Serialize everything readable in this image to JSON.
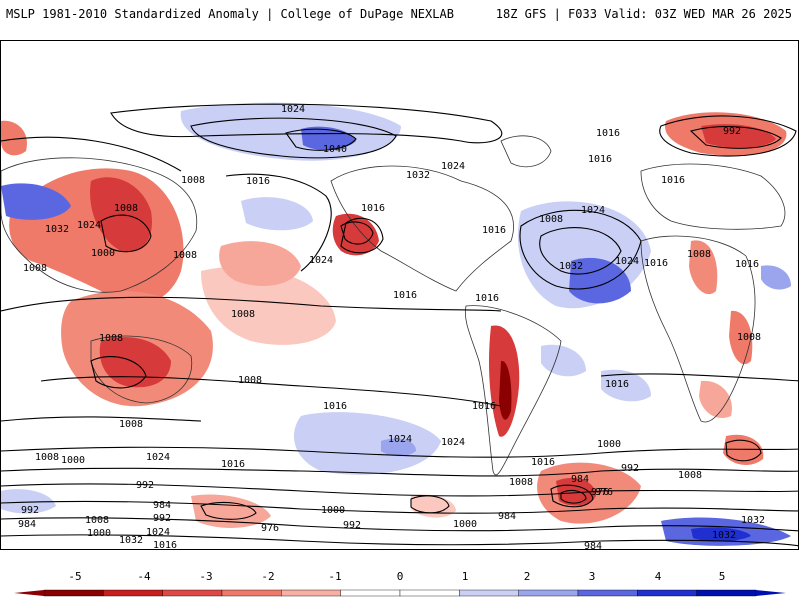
{
  "header": {
    "left_title": "MSLP 1981-2010 Standardized Anomaly | College of DuPage NEXLAB",
    "right_title": "18Z GFS | F033 Valid: 03Z WED MAR 26 2025"
  },
  "colors": {
    "neg_strong": "#8b0000",
    "neg_mid": "#d63a3a",
    "neg_light": "#f28a7a",
    "neg_faint": "#fbc8bf",
    "pos_faint": "#c9cff5",
    "pos_light": "#9aa5ee",
    "pos_mid": "#5a67e0",
    "pos_strong": "#2030d0",
    "contour": "#000000",
    "border": "#000000"
  },
  "colorbar": {
    "ticks": [
      "-5",
      "-4",
      "-3",
      "-2",
      "-1",
      "0",
      "1",
      "2",
      "3",
      "4",
      "5"
    ],
    "colors": [
      "#8b0000",
      "#c81e1e",
      "#e04848",
      "#f07a6a",
      "#f8b0a4",
      "#ffffff",
      "#ffffff",
      "#c9cff5",
      "#9aa5ee",
      "#5a67e0",
      "#2030d0",
      "#0010b0"
    ]
  },
  "isobar_labels": [
    "1024",
    "1040",
    "1016",
    "1032",
    "1024",
    "1016",
    "992",
    "1008",
    "1016",
    "1032",
    "1024",
    "1008",
    "1016",
    "1016",
    "1008",
    "1008",
    "1016",
    "1008",
    "1024",
    "1016",
    "1000",
    "1008",
    "1024",
    "1032",
    "1024",
    "1008",
    "1016",
    "1016",
    "1008",
    "1008",
    "1016",
    "1008",
    "1016",
    "1008",
    "1016",
    "1016",
    "1024",
    "1016",
    "1000",
    "992",
    "1008",
    "1024",
    "1016",
    "1000",
    "1008",
    "992",
    "1008",
    "984",
    "976",
    "1000",
    "984",
    "992",
    "976",
    "1000",
    "992",
    "984",
    "1032",
    "1024",
    "1016",
    "1040",
    "1032",
    "976",
    "1008",
    "992",
    "984",
    "1000",
    "1032",
    "1024",
    "1000",
    "992",
    "1016",
    "1008",
    "1000",
    "992",
    "984",
    "1024",
    "1032",
    "1024"
  ],
  "regions": {
    "description_icons": [
      "map-icon"
    ]
  }
}
